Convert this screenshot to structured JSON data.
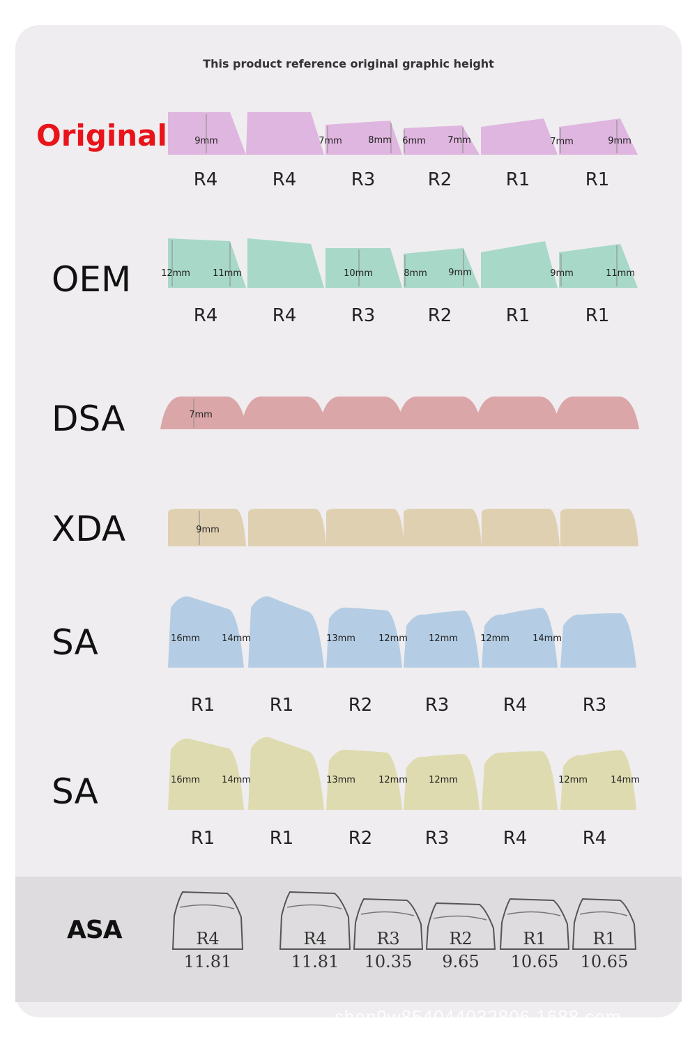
{
  "caption": "This product reference original graphic height",
  "profiles": {
    "original": {
      "name": "Original",
      "color": "#dfb6df",
      "rows": [
        "R4",
        "R4",
        "R3",
        "R2",
        "R1",
        "R1"
      ],
      "dims": [
        "9mm",
        "7mm",
        "8mm",
        "6mm",
        "7mm",
        "7mm",
        "9mm"
      ]
    },
    "oem": {
      "name": "OEM",
      "color": "#a8d8c8",
      "rows": [
        "R4",
        "R4",
        "R3",
        "R2",
        "R1",
        "R1"
      ],
      "dims": [
        "12mm",
        "11mm",
        "10mm",
        "8mm",
        "9mm",
        "9mm",
        "11mm"
      ]
    },
    "dsa": {
      "name": "DSA",
      "color": "#dba6a8",
      "dims": [
        "7mm"
      ]
    },
    "xda": {
      "name": "XDA",
      "color": "#e0d0b2",
      "dims": [
        "9mm"
      ]
    },
    "sa_blue": {
      "name": "SA",
      "color": "#b4cde4",
      "rows": [
        "R1",
        "R1",
        "R2",
        "R3",
        "R4",
        "R3"
      ],
      "dims": [
        "16mm",
        "14mm",
        "13mm",
        "12mm",
        "12mm",
        "12mm",
        "14mm"
      ]
    },
    "sa_yellow": {
      "name": "SA",
      "color": "#dedbb0",
      "rows": [
        "R1",
        "R1",
        "R2",
        "R3",
        "R4",
        "R4"
      ],
      "dims": [
        "16mm",
        "14mm",
        "13mm",
        "12mm",
        "12mm",
        "12mm",
        "14mm"
      ]
    },
    "asa": {
      "name": "ASA",
      "rows": [
        "R4",
        "R4",
        "R3",
        "R2",
        "R1",
        "R1"
      ],
      "heights": [
        "11.81",
        "11.81",
        "10.35",
        "9.65",
        "10.65",
        "10.65"
      ]
    }
  },
  "watermark": "shop9w854044032806.1688.com"
}
